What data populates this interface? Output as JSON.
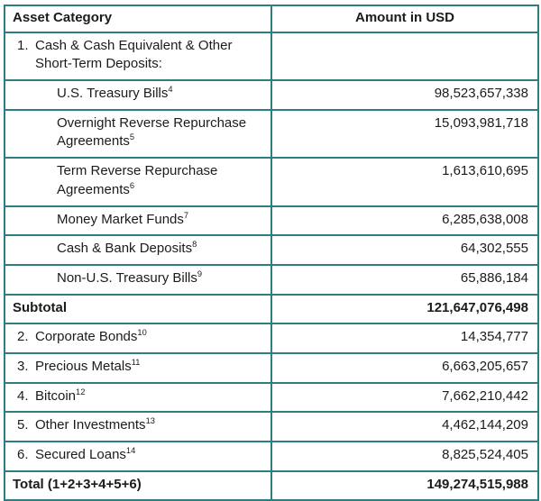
{
  "table": {
    "border_color": "#2e7d83",
    "text_color": "#1b1b1b",
    "header": {
      "col1": "Asset Category",
      "col2": "Amount in USD"
    },
    "rows": [
      {
        "type": "group",
        "num": "1.",
        "label": "Cash & Cash Equivalent & Other Short-Term Deposits:",
        "sup": "",
        "amount": ""
      },
      {
        "type": "sub",
        "num": "",
        "label": "U.S. Treasury Bills",
        "sup": "4",
        "amount": "98,523,657,338"
      },
      {
        "type": "sub",
        "num": "",
        "label": "Overnight Reverse Repurchase Agreements",
        "sup": "5",
        "amount": "15,093,981,718"
      },
      {
        "type": "sub",
        "num": "",
        "label": "Term Reverse Repurchase Agreements",
        "sup": "6",
        "amount": "1,613,610,695"
      },
      {
        "type": "sub",
        "num": "",
        "label": "Money Market Funds",
        "sup": "7",
        "amount": "6,285,638,008"
      },
      {
        "type": "sub",
        "num": "",
        "label": "Cash & Bank Deposits",
        "sup": "8",
        "amount": "64,302,555"
      },
      {
        "type": "sub",
        "num": "",
        "label": "Non-U.S. Treasury Bills",
        "sup": "9",
        "amount": "65,886,184"
      },
      {
        "type": "subtotal",
        "num": "",
        "label": "Subtotal",
        "sup": "",
        "amount": "121,647,076,498"
      },
      {
        "type": "numbered",
        "num": "2.",
        "label": "Corporate Bonds",
        "sup": "10",
        "amount": "14,354,777"
      },
      {
        "type": "numbered",
        "num": "3.",
        "label": "Precious Metals",
        "sup": "11",
        "amount": "6,663,205,657"
      },
      {
        "type": "numbered",
        "num": "4.",
        "label": "Bitcoin",
        "sup": "12",
        "amount": "7,662,210,442"
      },
      {
        "type": "numbered",
        "num": "5.",
        "label": "Other Investments",
        "sup": "13",
        "amount": "4,462,144,209"
      },
      {
        "type": "numbered",
        "num": "6.",
        "label": "Secured Loans",
        "sup": "14",
        "amount": "8,825,524,405"
      },
      {
        "type": "total",
        "num": "",
        "label": "Total (1+2+3+4+5+6)",
        "sup": "",
        "amount": "149,274,515,988"
      }
    ]
  }
}
